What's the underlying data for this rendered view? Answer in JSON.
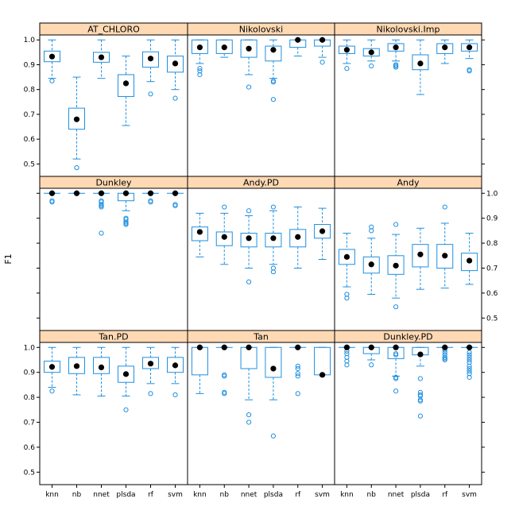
{
  "chart_data": {
    "type": "box",
    "ylabel": "F1",
    "categories": [
      "knn",
      "nb",
      "nnet",
      "plsda",
      "rf",
      "svm"
    ],
    "ylim": [
      0.45,
      1.02
    ],
    "y_ticks": [
      "0.5",
      "0.6",
      "0.7",
      "0.8",
      "0.9",
      "1.0"
    ],
    "colors": {
      "box": "#1f8fe0",
      "strip": "#ffd9b3",
      "median": "#000000",
      "frame": "#000000"
    },
    "panels": [
      {
        "title": "AT_CHLORO",
        "boxes": [
          {
            "q1": 0.912,
            "median": 0.933,
            "q3": 0.955,
            "lower": 0.845,
            "upper": 1.0,
            "outliers": [
              0.835
            ]
          },
          {
            "q1": 0.64,
            "median": 0.68,
            "q3": 0.725,
            "lower": 0.52,
            "upper": 0.85,
            "outliers": [
              0.485
            ]
          },
          {
            "q1": 0.91,
            "median": 0.93,
            "q3": 0.95,
            "lower": 0.845,
            "upper": 1.0,
            "outliers": []
          },
          {
            "q1": 0.772,
            "median": 0.825,
            "q3": 0.86,
            "lower": 0.655,
            "upper": 0.935,
            "outliers": []
          },
          {
            "q1": 0.89,
            "median": 0.925,
            "q3": 0.952,
            "lower": 0.832,
            "upper": 1.0,
            "outliers": [
              0.782
            ]
          },
          {
            "q1": 0.87,
            "median": 0.905,
            "q3": 0.935,
            "lower": 0.8,
            "upper": 1.0,
            "outliers": [
              0.765
            ]
          }
        ]
      },
      {
        "title": "Nikolovski",
        "boxes": [
          {
            "q1": 0.945,
            "median": 0.97,
            "q3": 1.0,
            "lower": 0.905,
            "upper": 1.0,
            "outliers": [
              0.885,
              0.875,
              0.86
            ]
          },
          {
            "q1": 0.945,
            "median": 0.97,
            "q3": 1.0,
            "lower": 0.93,
            "upper": 1.0,
            "outliers": []
          },
          {
            "q1": 0.93,
            "median": 0.965,
            "q3": 1.0,
            "lower": 0.86,
            "upper": 1.0,
            "outliers": [
              0.81
            ]
          },
          {
            "q1": 0.915,
            "median": 0.96,
            "q3": 0.975,
            "lower": 0.845,
            "upper": 1.0,
            "outliers": [
              0.835,
              0.83,
              0.76
            ]
          },
          {
            "q1": 0.97,
            "median": 1.0,
            "q3": 1.0,
            "lower": 0.935,
            "upper": 1.0,
            "outliers": []
          },
          {
            "q1": 0.975,
            "median": 1.0,
            "q3": 1.0,
            "lower": 0.93,
            "upper": 1.0,
            "outliers": [
              0.91
            ]
          }
        ]
      },
      {
        "title": "Nikolovski.Imp",
        "boxes": [
          {
            "q1": 0.945,
            "median": 0.96,
            "q3": 0.975,
            "lower": 0.905,
            "upper": 1.0,
            "outliers": [
              0.885
            ]
          },
          {
            "q1": 0.935,
            "median": 0.95,
            "q3": 0.965,
            "lower": 0.915,
            "upper": 1.0,
            "outliers": [
              0.895
            ]
          },
          {
            "q1": 0.955,
            "median": 0.97,
            "q3": 0.985,
            "lower": 0.915,
            "upper": 1.0,
            "outliers": [
              0.9,
              0.895,
              0.89
            ]
          },
          {
            "q1": 0.88,
            "median": 0.905,
            "q3": 0.94,
            "lower": 0.78,
            "upper": 1.0,
            "outliers": []
          },
          {
            "q1": 0.945,
            "median": 0.97,
            "q3": 0.985,
            "lower": 0.905,
            "upper": 1.0,
            "outliers": []
          },
          {
            "q1": 0.955,
            "median": 0.97,
            "q3": 0.985,
            "lower": 0.925,
            "upper": 1.0,
            "outliers": [
              0.88,
              0.875
            ]
          }
        ]
      },
      {
        "title": "Dunkley",
        "boxes": [
          {
            "q1": 1.0,
            "median": 1.0,
            "q3": 1.0,
            "lower": 1.0,
            "upper": 1.0,
            "outliers": [
              0.97,
              0.965
            ]
          },
          {
            "q1": 1.0,
            "median": 1.0,
            "q3": 1.0,
            "lower": 1.0,
            "upper": 1.0,
            "outliers": []
          },
          {
            "q1": 1.0,
            "median": 1.0,
            "q3": 1.0,
            "lower": 1.0,
            "upper": 1.0,
            "outliers": [
              0.97,
              0.965,
              0.955,
              0.95,
              0.945,
              0.84
            ]
          },
          {
            "q1": 0.97,
            "median": 1.0,
            "q3": 1.0,
            "lower": 0.93,
            "upper": 1.0,
            "outliers": [
              0.9,
              0.895,
              0.885,
              0.88,
              0.875
            ]
          },
          {
            "q1": 1.0,
            "median": 1.0,
            "q3": 1.0,
            "lower": 1.0,
            "upper": 1.0,
            "outliers": [
              0.97,
              0.965
            ]
          },
          {
            "q1": 1.0,
            "median": 1.0,
            "q3": 1.0,
            "lower": 1.0,
            "upper": 1.0,
            "outliers": [
              0.955,
              0.95
            ]
          }
        ]
      },
      {
        "title": "Andy.PD",
        "boxes": [
          {
            "q1": 0.81,
            "median": 0.845,
            "q3": 0.865,
            "lower": 0.745,
            "upper": 0.92,
            "outliers": []
          },
          {
            "q1": 0.79,
            "median": 0.825,
            "q3": 0.845,
            "lower": 0.715,
            "upper": 0.92,
            "outliers": [
              0.945
            ]
          },
          {
            "q1": 0.785,
            "median": 0.82,
            "q3": 0.84,
            "lower": 0.7,
            "upper": 0.91,
            "outliers": [
              0.93,
              0.645
            ]
          },
          {
            "q1": 0.785,
            "median": 0.82,
            "q3": 0.84,
            "lower": 0.715,
            "upper": 0.93,
            "outliers": [
              0.945,
              0.7,
              0.685
            ]
          },
          {
            "q1": 0.785,
            "median": 0.825,
            "q3": 0.855,
            "lower": 0.7,
            "upper": 0.945,
            "outliers": []
          },
          {
            "q1": 0.82,
            "median": 0.848,
            "q3": 0.875,
            "lower": 0.735,
            "upper": 0.94,
            "outliers": []
          }
        ]
      },
      {
        "title": "Andy",
        "boxes": [
          {
            "q1": 0.715,
            "median": 0.745,
            "q3": 0.775,
            "lower": 0.625,
            "upper": 0.84,
            "outliers": [
              0.595,
              0.58
            ]
          },
          {
            "q1": 0.68,
            "median": 0.715,
            "q3": 0.745,
            "lower": 0.595,
            "upper": 0.82,
            "outliers": [
              0.865,
              0.85
            ]
          },
          {
            "q1": 0.675,
            "median": 0.71,
            "q3": 0.75,
            "lower": 0.58,
            "upper": 0.835,
            "outliers": [
              0.875,
              0.545
            ]
          },
          {
            "q1": 0.705,
            "median": 0.755,
            "q3": 0.795,
            "lower": 0.615,
            "upper": 0.86,
            "outliers": []
          },
          {
            "q1": 0.7,
            "median": 0.75,
            "q3": 0.795,
            "lower": 0.62,
            "upper": 0.88,
            "outliers": [
              0.945
            ]
          },
          {
            "q1": 0.69,
            "median": 0.73,
            "q3": 0.76,
            "lower": 0.635,
            "upper": 0.84,
            "outliers": []
          }
        ]
      },
      {
        "title": "Tan.PD",
        "boxes": [
          {
            "q1": 0.9,
            "median": 0.922,
            "q3": 0.945,
            "lower": 0.84,
            "upper": 1.0,
            "outliers": [
              0.825
            ]
          },
          {
            "q1": 0.895,
            "median": 0.925,
            "q3": 0.96,
            "lower": 0.81,
            "upper": 1.0,
            "outliers": []
          },
          {
            "q1": 0.895,
            "median": 0.92,
            "q3": 0.96,
            "lower": 0.805,
            "upper": 1.0,
            "outliers": []
          },
          {
            "q1": 0.86,
            "median": 0.893,
            "q3": 0.925,
            "lower": 0.805,
            "upper": 1.0,
            "outliers": [
              0.75
            ]
          },
          {
            "q1": 0.915,
            "median": 0.935,
            "q3": 0.96,
            "lower": 0.855,
            "upper": 1.0,
            "outliers": [
              0.815
            ]
          },
          {
            "q1": 0.9,
            "median": 0.928,
            "q3": 0.96,
            "lower": 0.855,
            "upper": 1.0,
            "outliers": [
              0.81
            ]
          }
        ]
      },
      {
        "title": "Tan",
        "boxes": [
          {
            "q1": 0.89,
            "median": 1.0,
            "q3": 1.0,
            "lower": 0.815,
            "upper": 1.0,
            "outliers": []
          },
          {
            "q1": 1.0,
            "median": 1.0,
            "q3": 1.0,
            "lower": 1.0,
            "upper": 1.0,
            "outliers": [
              0.89,
              0.885,
              0.82,
              0.815
            ]
          },
          {
            "q1": 0.915,
            "median": 1.0,
            "q3": 1.0,
            "lower": 0.79,
            "upper": 1.0,
            "outliers": [
              0.73,
              0.7
            ]
          },
          {
            "q1": 0.88,
            "median": 0.915,
            "q3": 1.0,
            "lower": 0.79,
            "upper": 1.0,
            "outliers": [
              0.645
            ]
          },
          {
            "q1": 1.0,
            "median": 1.0,
            "q3": 1.0,
            "lower": 1.0,
            "upper": 1.0,
            "outliers": [
              0.925,
              0.915,
              0.895,
              0.885,
              0.815
            ]
          },
          {
            "q1": 0.89,
            "median": 0.89,
            "q3": 1.0,
            "lower": 0.89,
            "upper": 1.0,
            "outliers": []
          }
        ]
      },
      {
        "title": "Dunkley.PD",
        "boxes": [
          {
            "q1": 1.0,
            "median": 1.0,
            "q3": 1.0,
            "lower": 1.0,
            "upper": 1.0,
            "outliers": [
              0.985,
              0.975,
              0.96,
              0.945,
              0.93
            ]
          },
          {
            "q1": 0.975,
            "median": 1.0,
            "q3": 1.0,
            "lower": 0.95,
            "upper": 1.0,
            "outliers": [
              0.93
            ]
          },
          {
            "q1": 0.955,
            "median": 1.0,
            "q3": 1.0,
            "lower": 0.885,
            "upper": 1.0,
            "outliers": [
              0.975,
              0.97,
              0.88,
              0.875,
              0.825
            ]
          },
          {
            "q1": 0.97,
            "median": 0.972,
            "q3": 1.0,
            "lower": 0.925,
            "upper": 1.0,
            "outliers": [
              0.875,
              0.82,
              0.81,
              0.805,
              0.79,
              0.785,
              0.725
            ]
          },
          {
            "q1": 1.0,
            "median": 1.0,
            "q3": 1.0,
            "lower": 1.0,
            "upper": 1.0,
            "outliers": [
              0.99,
              0.98,
              0.97,
              0.96,
              0.955,
              0.95
            ]
          },
          {
            "q1": 1.0,
            "median": 1.0,
            "q3": 1.0,
            "lower": 1.0,
            "upper": 1.0,
            "outliers": [
              0.98,
              0.97,
              0.96,
              0.95,
              0.94,
              0.925,
              0.915,
              0.905,
              0.895,
              0.88
            ]
          }
        ]
      }
    ]
  }
}
